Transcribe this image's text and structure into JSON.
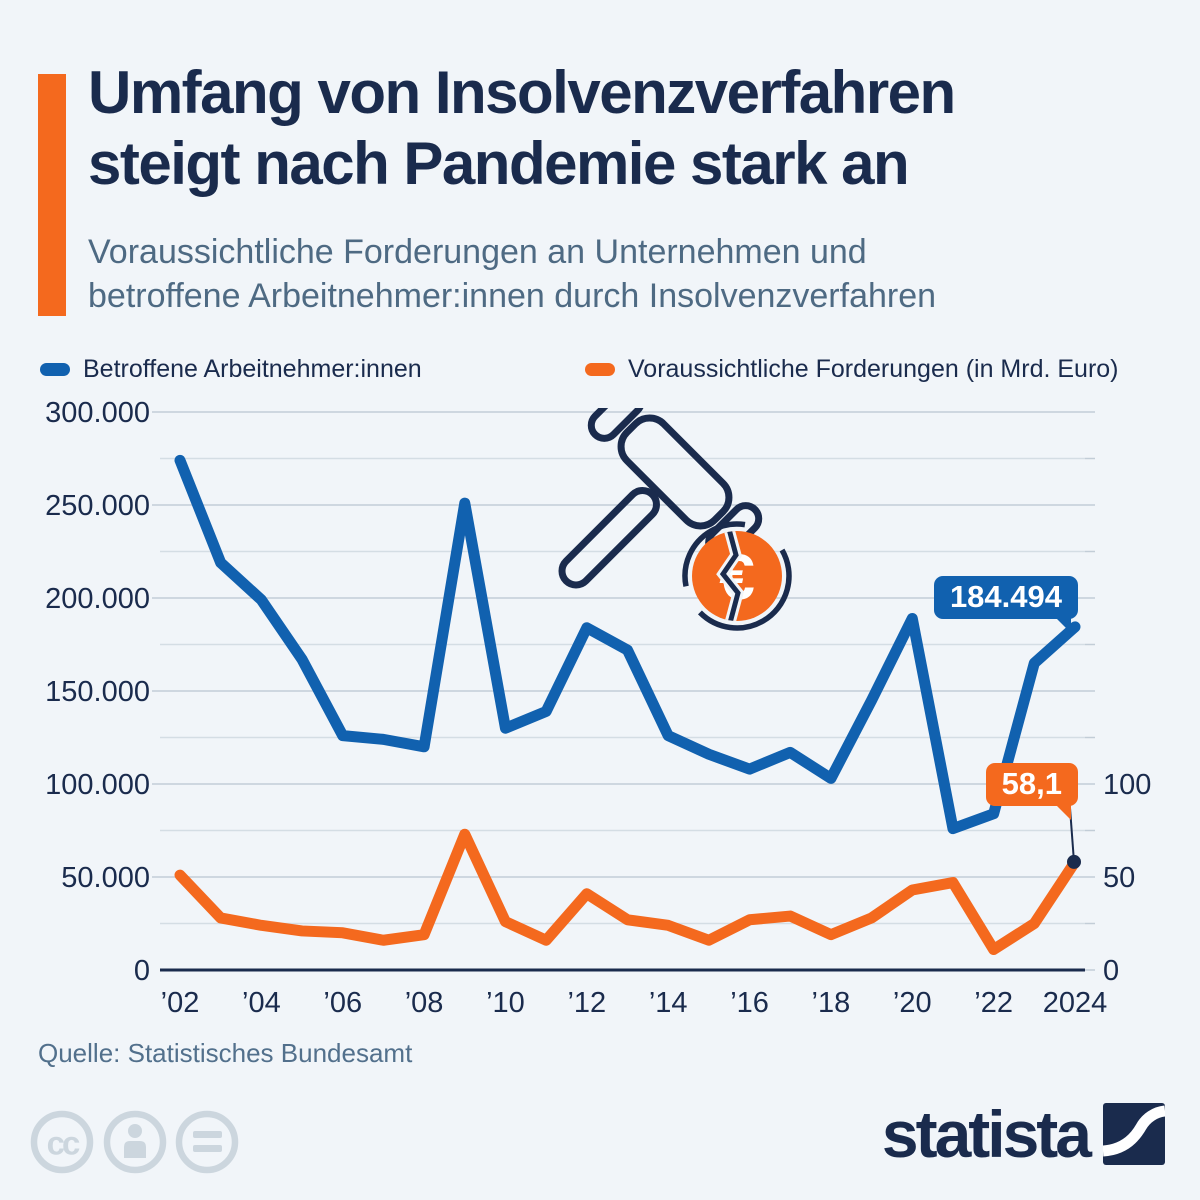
{
  "header": {
    "title_lines": [
      "Umfang von Insolvenzverfahren",
      "steigt nach Pandemie stark an"
    ],
    "subtitle_lines": [
      "Voraussichtliche Forderungen an Unternehmen und",
      "betroffene Arbeitnehmer:innen durch Insolvenzverfahren"
    ]
  },
  "legend": {
    "items": [
      {
        "label": "Betroffene Arbeitnehmer:innen",
        "color": "#1161af"
      },
      {
        "label": "Voraussichtliche Forderungen (in Mrd. Euro)",
        "color": "#f4691e"
      }
    ]
  },
  "chart_data": {
    "type": "line",
    "title": "Umfang von Insolvenzverfahren steigt nach Pandemie stark an",
    "x": [
      2002,
      2003,
      2004,
      2005,
      2006,
      2007,
      2008,
      2009,
      2010,
      2011,
      2012,
      2013,
      2014,
      2015,
      2016,
      2017,
      2018,
      2019,
      2020,
      2021,
      2022,
      2023,
      2024
    ],
    "series": [
      {
        "name": "Betroffene Arbeitnehmer:innen",
        "axis": "left",
        "color": "#1161af",
        "values": [
          274000,
          219000,
          199000,
          167000,
          126000,
          124000,
          120000,
          251000,
          130000,
          139000,
          184000,
          172000,
          126000,
          116000,
          108000,
          117000,
          103000,
          145000,
          189000,
          76000,
          84000,
          165000,
          184494
        ]
      },
      {
        "name": "Voraussichtliche Forderungen (in Mrd. Euro)",
        "axis": "right",
        "color": "#f4691e",
        "values": [
          51,
          28,
          24,
          21,
          20,
          16,
          19,
          73,
          26,
          16,
          41,
          27,
          24,
          16,
          27,
          29,
          19,
          28,
          43,
          47,
          11,
          25,
          58.1
        ]
      }
    ],
    "left_axis": {
      "min": 0,
      "max": 300000,
      "tick_step": 50000,
      "grid_step": 25000,
      "ticks": [
        {
          "value": 0,
          "label": "0"
        },
        {
          "value": 50000,
          "label": "50.000"
        },
        {
          "value": 100000,
          "label": "100.000"
        },
        {
          "value": 150000,
          "label": "150.000"
        },
        {
          "value": 200000,
          "label": "200.000"
        },
        {
          "value": 250000,
          "label": "250.000"
        },
        {
          "value": 300000,
          "label": "300.000"
        }
      ]
    },
    "right_axis": {
      "min": 0,
      "left_scale_factor": 1000,
      "ticks": [
        {
          "value": 0,
          "label": "0"
        },
        {
          "value": 50,
          "label": "50"
        },
        {
          "value": 100,
          "label": "100"
        }
      ]
    },
    "x_ticks": [
      {
        "year": 2002,
        "label": "’02"
      },
      {
        "year": 2004,
        "label": "’04"
      },
      {
        "year": 2006,
        "label": "’06"
      },
      {
        "year": 2008,
        "label": "’08"
      },
      {
        "year": 2010,
        "label": "’10"
      },
      {
        "year": 2012,
        "label": "’12"
      },
      {
        "year": 2014,
        "label": "’14"
      },
      {
        "year": 2016,
        "label": "’16"
      },
      {
        "year": 2018,
        "label": "’18"
      },
      {
        "year": 2020,
        "label": "’20"
      },
      {
        "year": 2022,
        "label": "’22"
      },
      {
        "year": 2024,
        "label": "2024"
      }
    ],
    "annotations": [
      {
        "series": "Betroffene Arbeitnehmer:innen",
        "x": 2024,
        "label": "184.494"
      },
      {
        "series": "Voraussichtliche Forderungen (in Mrd. Euro)",
        "x": 2024,
        "label": "58,1"
      }
    ],
    "grid": true,
    "legend_position": "top"
  },
  "footer": {
    "source": "Quelle: Statistisches Bundesamt",
    "logo_text": "statista"
  },
  "icons": [
    "gavel-icon",
    "broken-euro-coin-icon",
    "cc-icon",
    "cc-attribution-icon",
    "cc-no-derivatives-icon",
    "statista-logo-mark"
  ],
  "colors": {
    "background": "#f1f5f9",
    "navy": "#1a2b4d",
    "blue": "#1161af",
    "orange": "#f4691e",
    "subtitle_text": "#4e6a83",
    "source_text": "#52708c",
    "gridline": "#c2cdd7",
    "gridline_minor": "#d4dde4",
    "axis": "#1a2b4d",
    "icon_gray": "#ccd6de",
    "white": "#ffffff"
  }
}
